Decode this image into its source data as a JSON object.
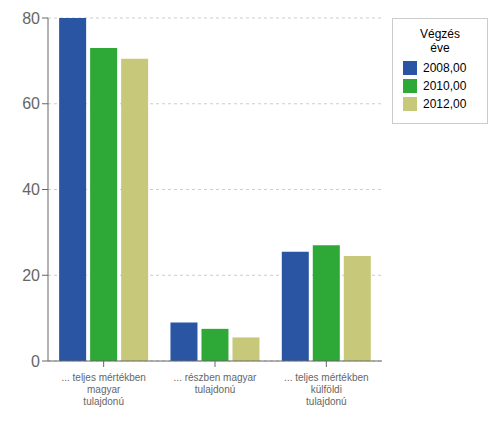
{
  "chart_data": {
    "type": "bar",
    "categories": [
      "... teljes mértékben magyar\ntulajdonú",
      "... részben magyar\ntulajdonú",
      "... teljes mértékben külföldi\ntulajdonú"
    ],
    "series": [
      {
        "name": "2008,00",
        "color": "#2955a3",
        "values": [
          80,
          9,
          25.5
        ]
      },
      {
        "name": "2010,00",
        "color": "#2ea836",
        "values": [
          73,
          7.5,
          27
        ]
      },
      {
        "name": "2012,00",
        "color": "#c8c87a",
        "values": [
          70.5,
          5.5,
          24.5
        ]
      }
    ],
    "ylim": [
      0,
      80
    ],
    "yticks": [
      0,
      20,
      40,
      60,
      80
    ],
    "grid": true,
    "legend": "right",
    "legend_title": "Végzés\néve"
  }
}
